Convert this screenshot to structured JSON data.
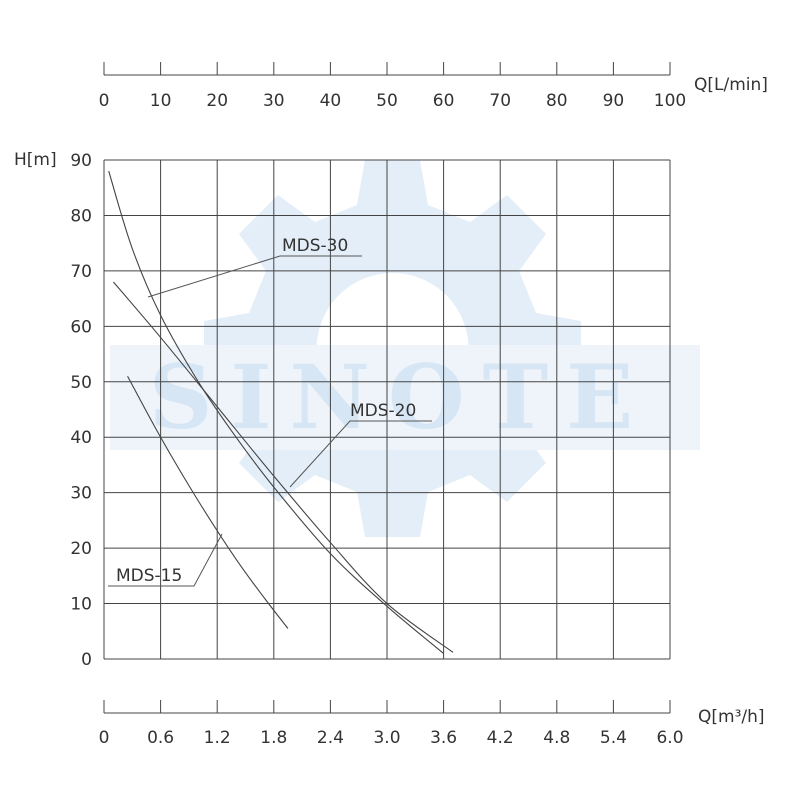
{
  "chart_data": {
    "type": "line",
    "y_axis": {
      "label": "H[m]",
      "range": [
        0,
        90
      ],
      "ticks": [
        "0",
        "10",
        "20",
        "30",
        "40",
        "50",
        "60",
        "70",
        "80",
        "90"
      ]
    },
    "x_axis_bottom": {
      "label": "Q[m³/h]",
      "range": [
        0,
        6.0
      ],
      "ticks": [
        "0",
        "0.6",
        "1.2",
        "1.8",
        "2.4",
        "3.0",
        "3.6",
        "4.2",
        "4.8",
        "5.4",
        "6.0"
      ]
    },
    "x_axis_top": {
      "label": "Q[L/min]",
      "range": [
        0,
        100
      ],
      "ticks": [
        "0",
        "10",
        "20",
        "30",
        "40",
        "50",
        "60",
        "70",
        "80",
        "90",
        "100"
      ]
    },
    "grid": true,
    "series": [
      {
        "name": "MDS-15",
        "points": [
          [
            0.25,
            51
          ],
          [
            0.6,
            40
          ],
          [
            1.0,
            28.5
          ],
          [
            1.4,
            18
          ],
          [
            1.7,
            11
          ],
          [
            1.95,
            5.5
          ]
        ],
        "label_anchor": [
          1.25,
          22
        ]
      },
      {
        "name": "MDS-20",
        "points": [
          [
            0.1,
            68
          ],
          [
            0.6,
            58
          ],
          [
            1.2,
            45.5
          ],
          [
            1.8,
            33
          ],
          [
            2.4,
            21
          ],
          [
            3.0,
            10
          ],
          [
            3.7,
            1.2
          ]
        ],
        "label_anchor": [
          2.0,
          30
        ]
      },
      {
        "name": "MDS-30",
        "points": [
          [
            0.05,
            88
          ],
          [
            0.3,
            74
          ],
          [
            0.6,
            62
          ],
          [
            1.0,
            50
          ],
          [
            1.4,
            40
          ],
          [
            1.8,
            31
          ],
          [
            2.4,
            19
          ],
          [
            3.0,
            9.5
          ],
          [
            3.6,
            1
          ]
        ],
        "label_anchor": [
          0.45,
          65
        ]
      }
    ],
    "watermark": {
      "text": "SINOTE",
      "color": "#dbe9f6"
    }
  }
}
